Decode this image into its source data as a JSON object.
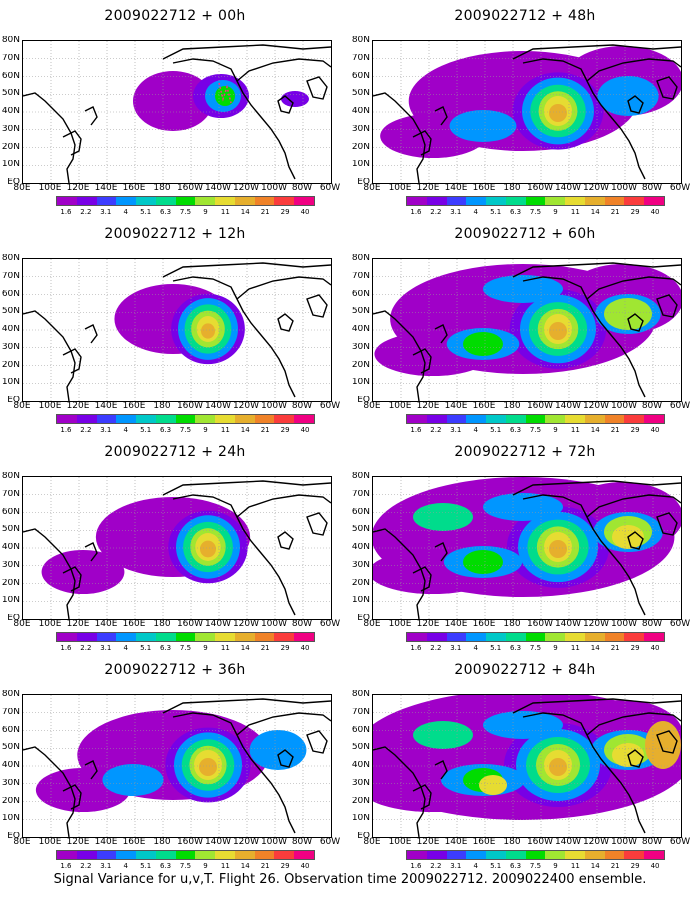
{
  "footer": "Signal Variance for u,v,T. Flight 26. Observation time 2009022712. 2009022400 ensemble.",
  "lat_labels": [
    "80N",
    "70N",
    "60N",
    "50N",
    "40N",
    "30N",
    "20N",
    "10N",
    "EQ"
  ],
  "lon_labels": [
    "80E",
    "100E",
    "120E",
    "140E",
    "160E",
    "180",
    "160W",
    "140W",
    "120W",
    "100W",
    "80W",
    "60W"
  ],
  "colorbar": {
    "levels": [
      "1.6",
      "2.2",
      "3.1",
      "4",
      "5.1",
      "6.3",
      "7.5",
      "9",
      "11",
      "14",
      "21",
      "29",
      "40"
    ],
    "colors": [
      "#a000c8",
      "#7800e6",
      "#3c3cff",
      "#0096ff",
      "#00c8c8",
      "#00dc8c",
      "#00dc00",
      "#a0e632",
      "#e6dc32",
      "#e6af2d",
      "#f08228",
      "#fa3c3c",
      "#f00082"
    ]
  },
  "panels": [
    {
      "title": "2009022712 + 00h",
      "lead_hours": 0
    },
    {
      "title": "2009022712 + 48h",
      "lead_hours": 48
    },
    {
      "title": "2009022712 + 12h",
      "lead_hours": 12
    },
    {
      "title": "2009022712 + 60h",
      "lead_hours": 60
    },
    {
      "title": "2009022712 + 24h",
      "lead_hours": 24
    },
    {
      "title": "2009022712 + 72h",
      "lead_hours": 72
    },
    {
      "title": "2009022712 + 36h",
      "lead_hours": 36
    },
    {
      "title": "2009022712 + 84h",
      "lead_hours": 84
    }
  ]
}
